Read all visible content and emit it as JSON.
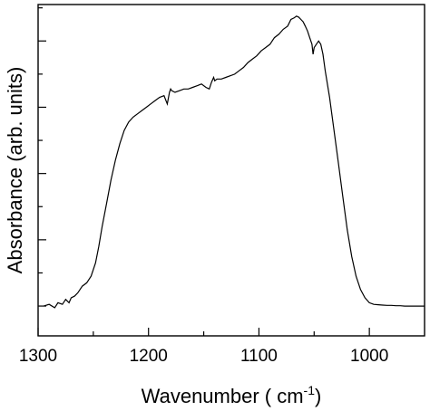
{
  "chart_data": {
    "type": "line",
    "xlabel": "Wavenumber ( cm",
    "xlabel_superscript": "-1",
    "xlabel_suffix": ")",
    "ylabel": "Absorbance (arb. units)",
    "xlim": [
      1300,
      950
    ],
    "x_reversed": true,
    "ylim": [
      0,
      1
    ],
    "y_tick_labels_shown": false,
    "x_ticks": [
      1300,
      1200,
      1100,
      1000
    ],
    "x_tick_labels": [
      "1300",
      "1200",
      "1100",
      "1000"
    ],
    "x_minor_ticks": [
      1250,
      1150,
      1050
    ],
    "y_major_ticks": [
      0.09,
      0.29,
      0.49,
      0.69,
      0.89
    ],
    "y_minor_ticks": [
      0.19,
      0.39,
      0.59,
      0.79,
      0.99
    ],
    "grid": false,
    "series": [
      {
        "x": [
          1295,
          1290,
          1285,
          1282,
          1278,
          1275,
          1272,
          1270,
          1267,
          1264,
          1260,
          1256,
          1252,
          1248,
          1245,
          1242,
          1238,
          1234,
          1230,
          1226,
          1222,
          1218,
          1214,
          1210,
          1206,
          1202,
          1198,
          1194,
          1190,
          1186,
          1183,
          1181,
          1180,
          1179,
          1176,
          1172,
          1168,
          1164,
          1160,
          1156,
          1152,
          1148,
          1145,
          1143,
          1141,
          1140,
          1138,
          1134,
          1130,
          1126,
          1122,
          1118,
          1114,
          1110,
          1106,
          1102,
          1098,
          1094,
          1090,
          1086,
          1082,
          1078,
          1074,
          1071,
          1068,
          1066,
          1064,
          1062,
          1060,
          1058,
          1056,
          1054,
          1052,
          1051,
          1050,
          1048,
          1046,
          1044,
          1042,
          1040,
          1036,
          1032,
          1028,
          1024,
          1020,
          1016,
          1012,
          1008,
          1004,
          1000,
          996,
          992,
          988,
          984,
          980,
          976,
          972,
          968,
          964,
          960,
          956,
          952,
          950
        ],
        "y": [
          0.09,
          0.095,
          0.085,
          0.1,
          0.095,
          0.11,
          0.1,
          0.115,
          0.12,
          0.13,
          0.15,
          0.16,
          0.18,
          0.22,
          0.27,
          0.33,
          0.4,
          0.47,
          0.53,
          0.58,
          0.62,
          0.645,
          0.66,
          0.67,
          0.68,
          0.69,
          0.7,
          0.71,
          0.72,
          0.725,
          0.7,
          0.735,
          0.745,
          0.74,
          0.735,
          0.74,
          0.745,
          0.745,
          0.75,
          0.755,
          0.76,
          0.75,
          0.745,
          0.765,
          0.78,
          0.77,
          0.775,
          0.775,
          0.78,
          0.785,
          0.79,
          0.8,
          0.81,
          0.825,
          0.835,
          0.845,
          0.86,
          0.87,
          0.88,
          0.9,
          0.91,
          0.925,
          0.935,
          0.955,
          0.96,
          0.965,
          0.962,
          0.955,
          0.948,
          0.935,
          0.92,
          0.9,
          0.88,
          0.85,
          0.87,
          0.88,
          0.89,
          0.88,
          0.85,
          0.8,
          0.72,
          0.62,
          0.52,
          0.42,
          0.32,
          0.24,
          0.18,
          0.14,
          0.115,
          0.1,
          0.095,
          0.094,
          0.093,
          0.092,
          0.092,
          0.091,
          0.091,
          0.09,
          0.09,
          0.09,
          0.09,
          0.09,
          0.09
        ]
      }
    ]
  }
}
